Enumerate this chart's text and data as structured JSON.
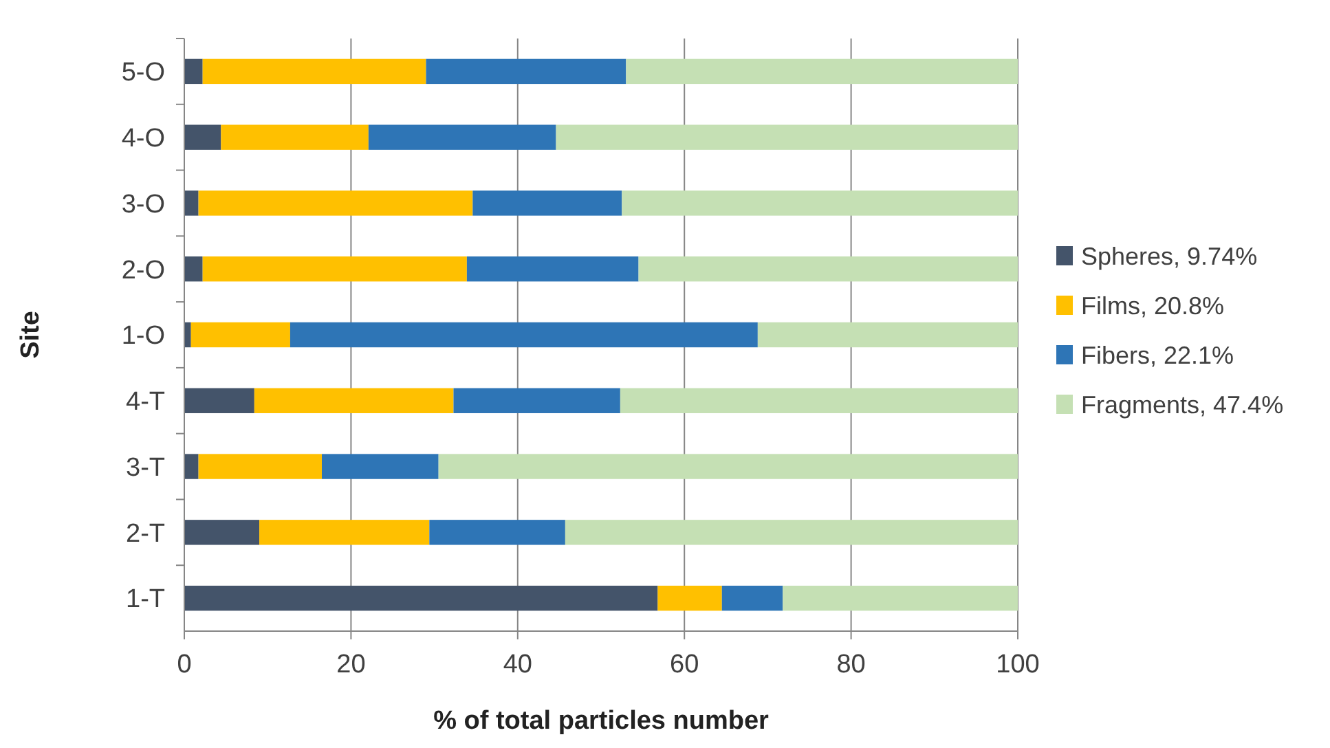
{
  "chart_data": {
    "type": "bar",
    "orientation": "horizontal",
    "stacked": true,
    "xlabel": "% of total particles number",
    "ylabel": "Site",
    "categories": [
      "5-O",
      "4-O",
      "3-O",
      "2-O",
      "1-O",
      "4-T",
      "3-T",
      "2-T",
      "1-T"
    ],
    "series": [
      {
        "name": "Spheres, 9.74%",
        "color": "#44546a",
        "values": [
          2.2,
          4.4,
          1.7,
          2.2,
          0.8,
          8.4,
          1.7,
          9.0,
          56.8
        ]
      },
      {
        "name": "Films, 20.8%",
        "color": "#ffc000",
        "values": [
          26.8,
          17.7,
          32.9,
          31.7,
          11.9,
          23.9,
          14.8,
          20.4,
          7.7
        ]
      },
      {
        "name": "Fibers, 22.1%",
        "color": "#2e75b6",
        "values": [
          24.0,
          22.5,
          17.9,
          20.6,
          56.1,
          20.0,
          14.0,
          16.3,
          7.3
        ]
      },
      {
        "name": "Fragments, 47.4%",
        "color": "#c5e0b4",
        "values": [
          47.0,
          55.4,
          47.5,
          45.5,
          31.2,
          47.7,
          69.5,
          54.3,
          28.2
        ]
      }
    ],
    "xlim": [
      0,
      100
    ],
    "xticks": [
      0,
      20,
      40,
      60,
      80,
      100
    ],
    "grid": "x",
    "legend": "right"
  }
}
